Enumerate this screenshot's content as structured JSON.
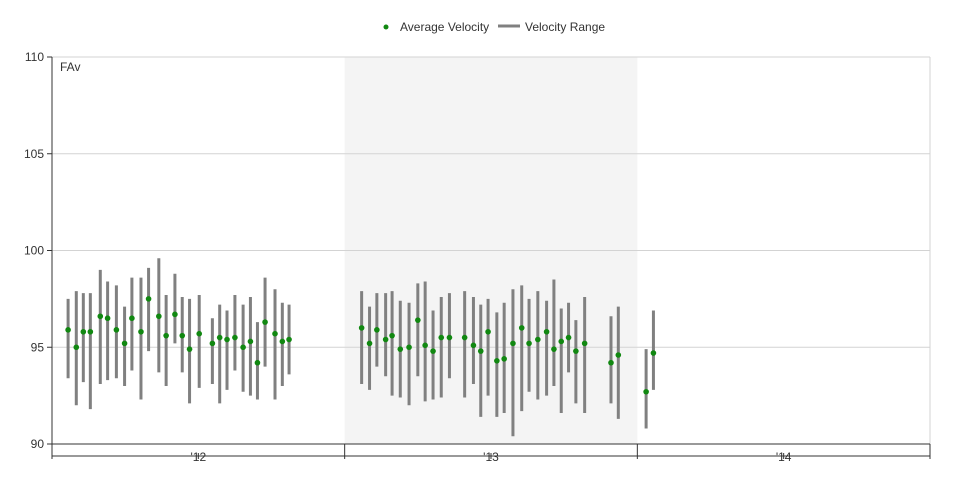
{
  "legend": {
    "avg_label": "Average Velocity",
    "range_label": "Velocity Range"
  },
  "colors": {
    "avg_point": "#118811",
    "range_bar": "#808080",
    "shaded_band": "#f4f4f4",
    "grid": "#d3d3d3",
    "axis": "#333333"
  },
  "chart_data": {
    "type": "scatter",
    "plot_label": "FAv",
    "ylim": [
      90,
      110
    ],
    "yticks": [
      90,
      95,
      100,
      105,
      110
    ],
    "xlim": [
      0,
      3
    ],
    "xticks": [
      {
        "label": "'12",
        "x": 0.5
      },
      {
        "label": "'13",
        "x": 1.5
      },
      {
        "label": "'14",
        "x": 2.5
      }
    ],
    "season_boundaries": [
      1,
      2
    ],
    "shaded_range": [
      1,
      2
    ],
    "grid": true,
    "legend_position": "top-center",
    "series": [
      {
        "name": "Average Velocity",
        "style": "point",
        "x": [
          0.055,
          0.083,
          0.107,
          0.131,
          0.165,
          0.19,
          0.22,
          0.248,
          0.273,
          0.304,
          0.33,
          0.365,
          0.39,
          0.42,
          0.445,
          0.47,
          0.503,
          0.548,
          0.573,
          0.598,
          0.625,
          0.653,
          0.678,
          0.702,
          0.728,
          0.762,
          0.787,
          0.81,
          1.058,
          1.085,
          1.11,
          1.14,
          1.162,
          1.19,
          1.22,
          1.25,
          1.275,
          1.302,
          1.33,
          1.358,
          1.41,
          1.44,
          1.465,
          1.49,
          1.52,
          1.545,
          1.575,
          1.605,
          1.63,
          1.66,
          1.69,
          1.715,
          1.74,
          1.765,
          1.79,
          1.82,
          1.91,
          1.935,
          2.03,
          2.055
        ],
        "y": [
          95.9,
          95.0,
          95.8,
          95.8,
          96.6,
          96.5,
          95.9,
          95.2,
          96.5,
          95.8,
          97.5,
          96.6,
          95.6,
          96.7,
          95.6,
          94.9,
          95.7,
          95.2,
          95.5,
          95.4,
          95.5,
          95.0,
          95.3,
          94.2,
          96.3,
          95.7,
          95.3,
          95.4,
          96.0,
          95.2,
          95.9,
          95.4,
          95.6,
          94.9,
          95.0,
          96.4,
          95.1,
          94.8,
          95.5,
          95.5,
          95.5,
          95.1,
          94.8,
          95.8,
          94.3,
          94.4,
          95.2,
          96.0,
          95.2,
          95.4,
          95.8,
          94.9,
          95.3,
          95.5,
          94.8,
          95.2,
          94.2,
          94.6,
          92.7,
          94.7
        ]
      },
      {
        "name": "Velocity Range",
        "style": "vertical-bar",
        "x": [
          0.055,
          0.083,
          0.107,
          0.131,
          0.165,
          0.19,
          0.22,
          0.248,
          0.273,
          0.304,
          0.33,
          0.365,
          0.39,
          0.42,
          0.445,
          0.47,
          0.503,
          0.548,
          0.573,
          0.598,
          0.625,
          0.653,
          0.678,
          0.702,
          0.728,
          0.762,
          0.787,
          0.81,
          1.058,
          1.085,
          1.11,
          1.14,
          1.162,
          1.19,
          1.22,
          1.25,
          1.275,
          1.302,
          1.33,
          1.358,
          1.41,
          1.44,
          1.465,
          1.49,
          1.52,
          1.545,
          1.575,
          1.605,
          1.63,
          1.66,
          1.69,
          1.715,
          1.74,
          1.765,
          1.79,
          1.82,
          1.91,
          1.935,
          2.03,
          2.055
        ],
        "low": [
          93.4,
          92.0,
          93.2,
          91.8,
          93.1,
          93.3,
          93.4,
          93.0,
          93.8,
          92.3,
          94.8,
          93.7,
          93.0,
          95.2,
          93.7,
          92.1,
          92.9,
          93.1,
          92.1,
          92.8,
          93.8,
          92.7,
          92.5,
          92.3,
          94.0,
          92.3,
          93.0,
          93.6,
          93.1,
          92.8,
          94.0,
          93.5,
          92.5,
          92.4,
          92.0,
          93.5,
          92.2,
          92.3,
          92.4,
          93.4,
          92.4,
          93.1,
          91.4,
          92.5,
          91.4,
          91.6,
          90.4,
          91.7,
          92.7,
          92.3,
          92.5,
          93.0,
          91.6,
          93.7,
          92.1,
          91.6,
          92.1,
          91.3,
          90.8,
          92.8
        ],
        "high": [
          97.5,
          97.9,
          97.8,
          97.8,
          99.0,
          98.4,
          98.2,
          97.1,
          98.6,
          98.6,
          99.1,
          99.6,
          97.7,
          98.8,
          97.6,
          97.5,
          97.7,
          96.5,
          97.2,
          96.9,
          97.7,
          97.2,
          97.6,
          96.3,
          98.6,
          98.0,
          97.3,
          97.2,
          97.9,
          97.1,
          97.8,
          97.8,
          97.9,
          97.4,
          97.3,
          98.3,
          98.4,
          96.9,
          97.6,
          97.8,
          97.9,
          97.6,
          97.2,
          97.5,
          96.8,
          97.3,
          98.0,
          98.2,
          97.5,
          97.9,
          97.4,
          98.5,
          97.0,
          97.3,
          96.4,
          97.6,
          96.6,
          97.1,
          94.9,
          96.9
        ]
      }
    ]
  }
}
